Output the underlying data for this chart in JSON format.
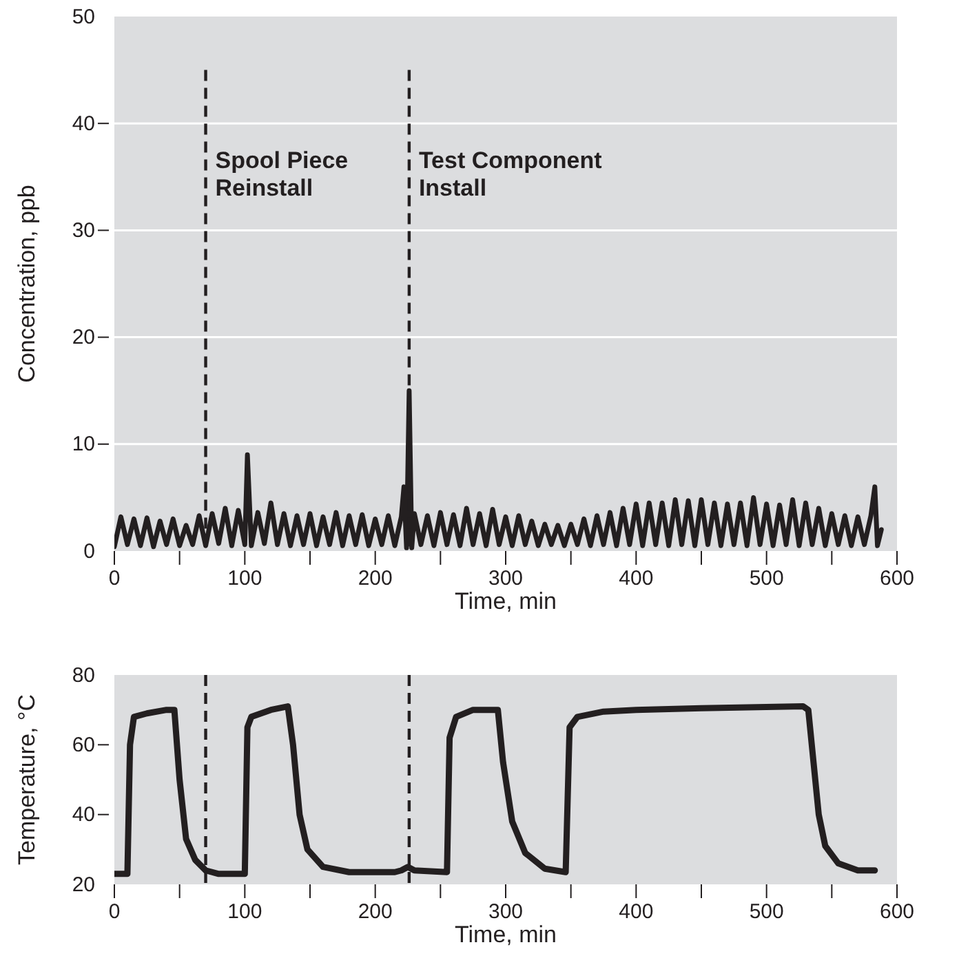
{
  "chart_data": [
    {
      "type": "line",
      "xlabel": "Time, min",
      "ylabel": "Concentration, ppb",
      "xlim": [
        0,
        600
      ],
      "ylim": [
        0,
        50
      ],
      "xticks": [
        0,
        {
          "value": 50,
          "label": null
        },
        100,
        {
          "value": 150,
          "label": null
        },
        200,
        {
          "value": 250,
          "label": null
        },
        300,
        {
          "value": 350,
          "label": null
        },
        400,
        {
          "value": 450,
          "label": null
        },
        500,
        {
          "value": 550,
          "label": null
        },
        600
      ],
      "yticks": [
        0,
        10,
        20,
        30,
        40,
        50
      ],
      "grid": "y",
      "line_style": "solid",
      "marker": "none",
      "ref_lines": [
        {
          "axis": "x",
          "value": 70,
          "label": "Spool Piece Reinstall",
          "line_style": "dashed",
          "color": "#231f20"
        },
        {
          "axis": "x",
          "value": 226,
          "label": "Test Component Install",
          "line_style": "dashed",
          "color": "#231f20"
        }
      ],
      "series": [
        {
          "color": "#231f20",
          "x": [
            0,
            5,
            10,
            15,
            20,
            25,
            30,
            35,
            40,
            45,
            50,
            55,
            60,
            65,
            70,
            75,
            80,
            85,
            90,
            95,
            100,
            102,
            105,
            110,
            115,
            120,
            125,
            130,
            135,
            140,
            145,
            150,
            155,
            160,
            165,
            170,
            175,
            180,
            185,
            190,
            195,
            200,
            205,
            210,
            215,
            220,
            222,
            224,
            226,
            228,
            230,
            235,
            240,
            245,
            250,
            255,
            260,
            265,
            270,
            275,
            280,
            285,
            290,
            295,
            300,
            305,
            310,
            315,
            320,
            325,
            330,
            335,
            340,
            345,
            350,
            355,
            360,
            365,
            370,
            375,
            380,
            385,
            390,
            395,
            400,
            405,
            410,
            415,
            420,
            425,
            430,
            435,
            440,
            445,
            450,
            455,
            460,
            465,
            470,
            475,
            480,
            485,
            490,
            495,
            500,
            505,
            510,
            515,
            520,
            525,
            530,
            535,
            540,
            545,
            550,
            555,
            560,
            565,
            570,
            575,
            580,
            583,
            585,
            588
          ],
          "values": [
            0.4,
            3.2,
            0.6,
            3,
            0.5,
            3.1,
            0.4,
            2.8,
            0.6,
            3,
            0.5,
            2.4,
            0.6,
            3.3,
            0.5,
            3.5,
            0.7,
            4,
            0.5,
            3.8,
            0.6,
            9,
            0.5,
            3.6,
            0.7,
            4.5,
            0.6,
            3.5,
            0.5,
            3.3,
            0.6,
            3.5,
            0.5,
            3.2,
            0.6,
            3.6,
            0.5,
            3.3,
            0.6,
            3.4,
            0.5,
            3,
            0.6,
            3.3,
            0.5,
            3.2,
            6,
            0.3,
            15,
            0.3,
            3.5,
            0.6,
            3.3,
            0.5,
            3.6,
            0.6,
            3.4,
            0.5,
            4,
            0.6,
            3.5,
            0.5,
            3.9,
            0.6,
            3.2,
            0.5,
            3.3,
            0.6,
            2.8,
            0.5,
            2.5,
            0.6,
            2.4,
            0.5,
            2.5,
            0.6,
            3,
            0.5,
            3.3,
            0.6,
            3.6,
            0.5,
            4,
            0.6,
            4.4,
            0.5,
            4.5,
            0.6,
            4.5,
            0.5,
            4.8,
            0.6,
            4.7,
            0.5,
            4.8,
            0.6,
            4.5,
            0.5,
            4.4,
            0.6,
            4.5,
            0.5,
            5,
            0.6,
            4.4,
            0.5,
            4.3,
            0.6,
            4.8,
            0.5,
            4.5,
            0.6,
            4,
            0.5,
            3.5,
            0.6,
            3.3,
            0.5,
            3.2,
            0.6,
            3.3,
            6,
            0.5,
            2
          ]
        }
      ]
    },
    {
      "type": "line",
      "xlabel": "Time, min",
      "ylabel": "Temperature, °C",
      "xlim": [
        0,
        600
      ],
      "ylim": [
        20,
        80
      ],
      "xticks": [
        0,
        {
          "value": 50,
          "label": null
        },
        100,
        {
          "value": 150,
          "label": null
        },
        200,
        {
          "value": 250,
          "label": null
        },
        300,
        {
          "value": 350,
          "label": null
        },
        400,
        {
          "value": 450,
          "label": null
        },
        500,
        {
          "value": 550,
          "label": null
        },
        600
      ],
      "yticks": [
        20,
        40,
        60,
        80
      ],
      "grid": false,
      "line_style": "solid",
      "marker": "none",
      "ref_lines": [
        {
          "axis": "x",
          "value": 70,
          "line_style": "dashed",
          "color": "#231f20"
        },
        {
          "axis": "x",
          "value": 226,
          "line_style": "dashed",
          "color": "#231f20"
        }
      ],
      "series": [
        {
          "color": "#231f20",
          "x": [
            0,
            10,
            12,
            15,
            25,
            40,
            46,
            50,
            55,
            62,
            70,
            80,
            100,
            102,
            105,
            120,
            133,
            137,
            142,
            148,
            160,
            180,
            215,
            220,
            225,
            230,
            255,
            257,
            262,
            275,
            294,
            298,
            305,
            315,
            330,
            346,
            349,
            355,
            375,
            400,
            450,
            528,
            532,
            536,
            540,
            545,
            555,
            570,
            583
          ],
          "values": [
            23,
            23,
            60,
            68,
            69,
            70,
            70,
            50,
            33,
            27,
            24,
            23,
            23,
            65,
            68,
            70,
            71,
            60,
            40,
            30,
            25,
            23.5,
            23.5,
            24,
            25,
            24,
            23.5,
            62,
            68,
            70,
            70,
            55,
            38,
            29,
            24.5,
            23.5,
            65,
            68,
            69.5,
            70,
            70.5,
            71,
            70,
            55,
            40,
            31,
            26,
            24,
            24
          ]
        }
      ]
    }
  ]
}
